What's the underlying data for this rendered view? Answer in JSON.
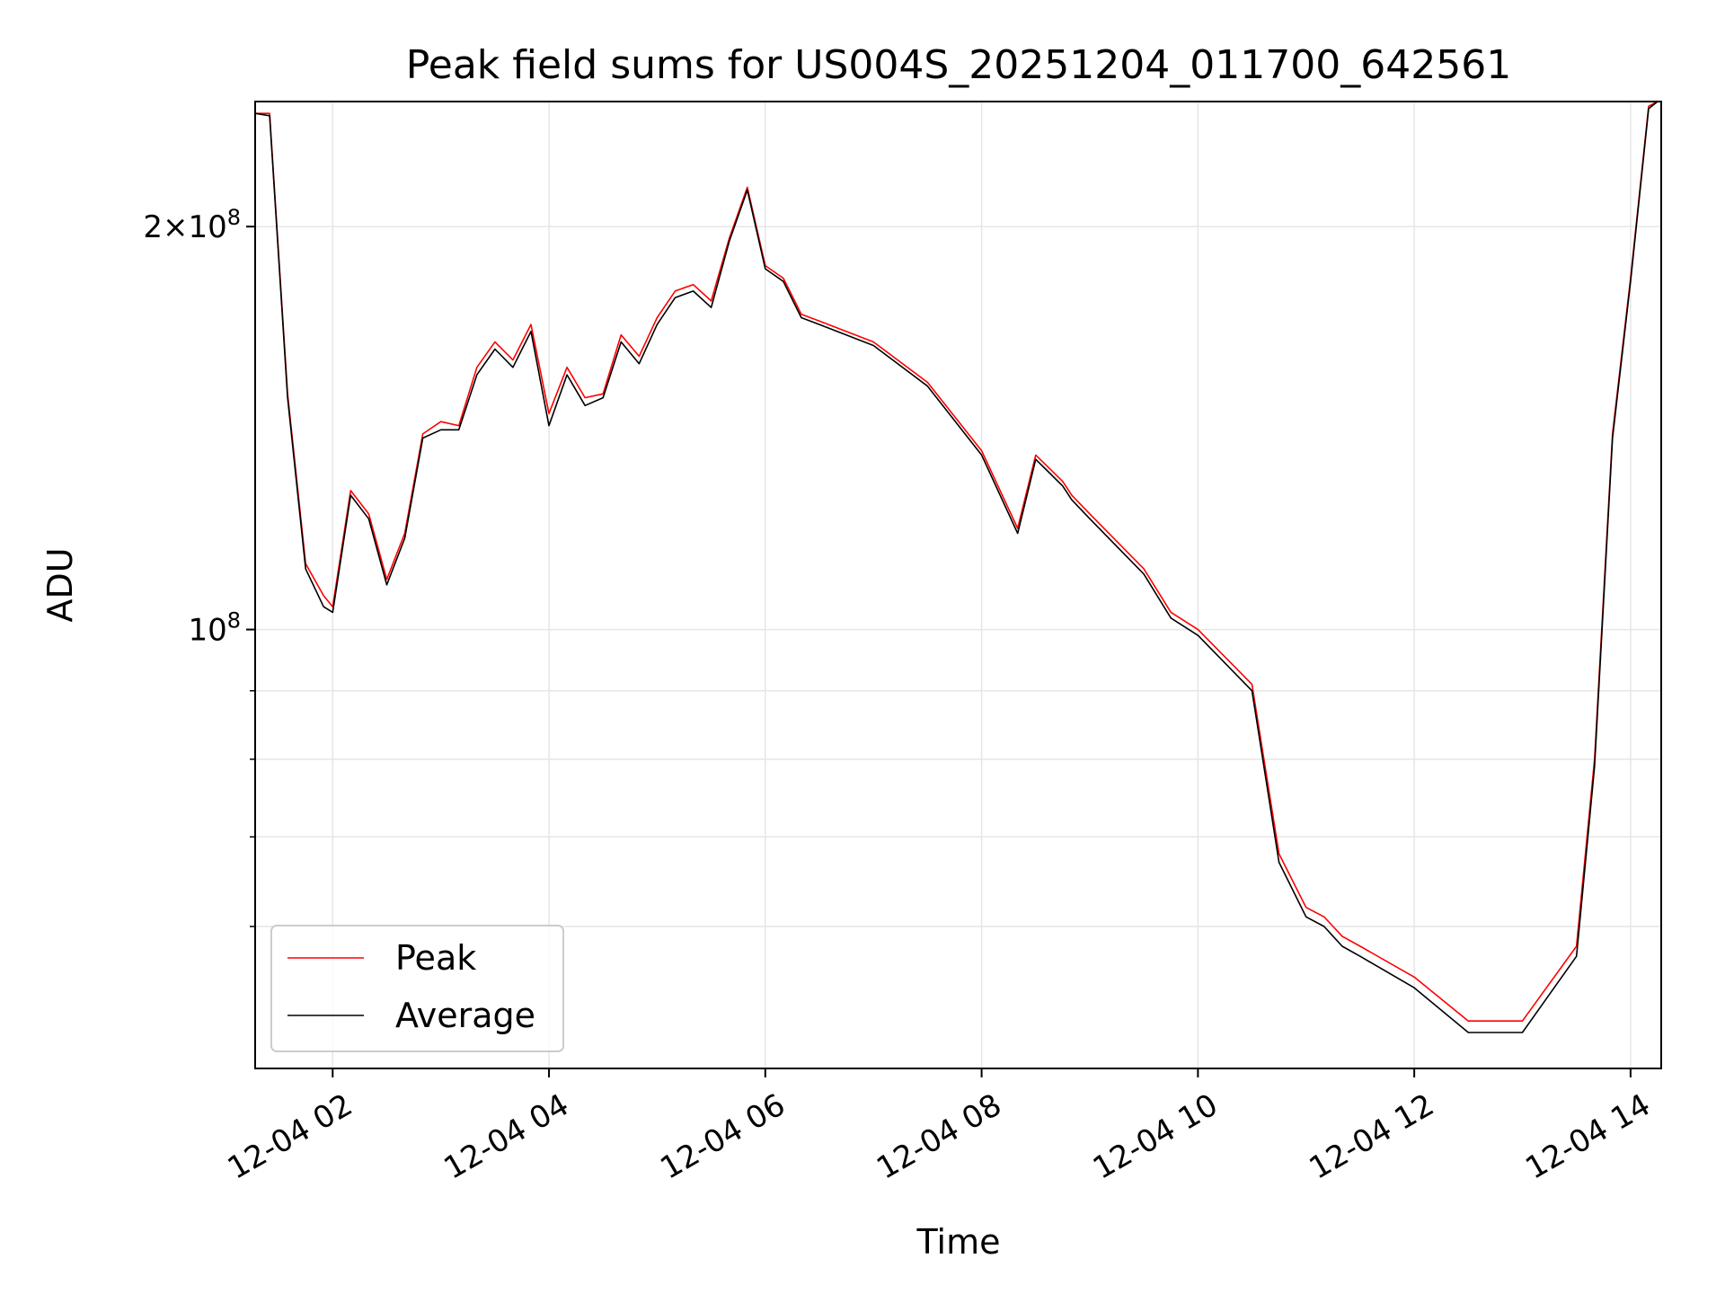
{
  "chart_data": {
    "type": "line",
    "title": "Peak field sums for US004S_20251204_011700_642561",
    "xlabel": "Time",
    "ylabel": "ADU",
    "yscale": "log",
    "ylim": [
      47000000,
      248000000
    ],
    "xlim": [
      "12-04 01:17",
      "12-04 14:17"
    ],
    "x_ticks": [
      "12-04 02",
      "12-04 04",
      "12-04 06",
      "12-04 08",
      "12-04 10",
      "12-04 12",
      "12-04 14"
    ],
    "y_major_ticks": [
      {
        "value": 100000000,
        "base": "10",
        "exp": "8",
        "mult": ""
      },
      {
        "value": 200000000,
        "base": "10",
        "exp": "8",
        "mult": "2×"
      }
    ],
    "y_minor_ticks": [
      60000000,
      70000000,
      80000000,
      90000000
    ],
    "grid": true,
    "legend": {
      "position": "lower-left",
      "entries": [
        "Peak",
        "Average"
      ]
    },
    "colors": {
      "peak": "#ff0000",
      "average": "#000000",
      "grid": "#e6e6e6"
    },
    "series": [
      {
        "name": "Peak",
        "x": [
          "12-04 01:17",
          "12-04 01:25",
          "12-04 01:35",
          "12-04 01:45",
          "12-04 01:55",
          "12-04 02:00",
          "12-04 02:10",
          "12-04 02:20",
          "12-04 02:30",
          "12-04 02:40",
          "12-04 02:50",
          "12-04 03:00",
          "12-04 03:10",
          "12-04 03:20",
          "12-04 03:30",
          "12-04 03:40",
          "12-04 03:50",
          "12-04 04:00",
          "12-04 04:10",
          "12-04 04:20",
          "12-04 04:30",
          "12-04 04:40",
          "12-04 04:50",
          "12-04 05:00",
          "12-04 05:10",
          "12-04 05:20",
          "12-04 05:30",
          "12-04 05:40",
          "12-04 05:50",
          "12-04 06:00",
          "12-04 06:10",
          "12-04 06:20",
          "12-04 06:30",
          "12-04 07:00",
          "12-04 07:30",
          "12-04 08:00",
          "12-04 08:20",
          "12-04 08:30",
          "12-04 08:35",
          "12-04 08:45",
          "12-04 08:50",
          "12-04 09:00",
          "12-04 09:30",
          "12-04 09:45",
          "12-04 10:00",
          "12-04 10:30",
          "12-04 10:45",
          "12-04 11:00",
          "12-04 11:10",
          "12-04 11:15",
          "12-04 11:20",
          "12-04 11:30",
          "12-04 12:00",
          "12-04 12:30",
          "12-04 13:00",
          "12-04 13:30",
          "12-04 13:40",
          "12-04 13:50",
          "12-04 14:00",
          "12-04 14:10",
          "12-04 14:15"
        ],
        "y": [
          243000000,
          243000000,
          150000000,
          112000000,
          106000000,
          104000000,
          127000000,
          122000000,
          109000000,
          118000000,
          140000000,
          143000000,
          142000000,
          157000000,
          164000000,
          159000000,
          169000000,
          145000000,
          157000000,
          149000000,
          150000000,
          166000000,
          160000000,
          171000000,
          179000000,
          181000000,
          176000000,
          196000000,
          214000000,
          187000000,
          183000000,
          172000000,
          170000000,
          164000000,
          153000000,
          136000000,
          119000000,
          135000000,
          133000000,
          129000000,
          126000000,
          122000000,
          111000000,
          103000000,
          100000000,
          91000000,
          68000000,
          62000000,
          61000000,
          60000000,
          59000000,
          58000000,
          55000000,
          51000000,
          51000000,
          58000000,
          80000000,
          140000000,
          183000000,
          246000000,
          248000000
        ]
      },
      {
        "name": "Average",
        "x": [
          "12-04 01:17",
          "12-04 01:25",
          "12-04 01:35",
          "12-04 01:45",
          "12-04 01:55",
          "12-04 02:00",
          "12-04 02:10",
          "12-04 02:20",
          "12-04 02:30",
          "12-04 02:40",
          "12-04 02:50",
          "12-04 03:00",
          "12-04 03:10",
          "12-04 03:20",
          "12-04 03:30",
          "12-04 03:40",
          "12-04 03:50",
          "12-04 04:00",
          "12-04 04:10",
          "12-04 04:20",
          "12-04 04:30",
          "12-04 04:40",
          "12-04 04:50",
          "12-04 05:00",
          "12-04 05:10",
          "12-04 05:20",
          "12-04 05:30",
          "12-04 05:40",
          "12-04 05:50",
          "12-04 06:00",
          "12-04 06:10",
          "12-04 06:20",
          "12-04 06:30",
          "12-04 07:00",
          "12-04 07:30",
          "12-04 08:00",
          "12-04 08:20",
          "12-04 08:30",
          "12-04 08:35",
          "12-04 08:45",
          "12-04 08:50",
          "12-04 09:00",
          "12-04 09:30",
          "12-04 09:45",
          "12-04 10:00",
          "12-04 10:30",
          "12-04 10:45",
          "12-04 11:00",
          "12-04 11:10",
          "12-04 11:15",
          "12-04 11:20",
          "12-04 11:30",
          "12-04 12:00",
          "12-04 12:30",
          "12-04 13:00",
          "12-04 13:30",
          "12-04 13:40",
          "12-04 13:50",
          "12-04 14:00",
          "12-04 14:10",
          "12-04 14:15"
        ],
        "y": [
          243000000,
          242000000,
          149000000,
          111000000,
          104000000,
          103000000,
          126000000,
          121000000,
          108000000,
          117000000,
          139000000,
          141000000,
          141000000,
          155000000,
          162000000,
          157000000,
          167000000,
          142000000,
          155000000,
          147000000,
          149000000,
          164000000,
          158000000,
          169000000,
          177000000,
          179000000,
          174000000,
          195000000,
          213000000,
          186000000,
          182000000,
          171000000,
          169000000,
          163000000,
          152000000,
          135000000,
          118000000,
          134000000,
          132000000,
          128000000,
          125000000,
          121000000,
          110000000,
          102000000,
          99000000,
          90000000,
          67000000,
          61000000,
          60000000,
          59000000,
          58000000,
          57000000,
          54000000,
          50000000,
          50000000,
          57000000,
          79000000,
          139000000,
          182000000,
          245000000,
          248000000
        ]
      }
    ]
  }
}
